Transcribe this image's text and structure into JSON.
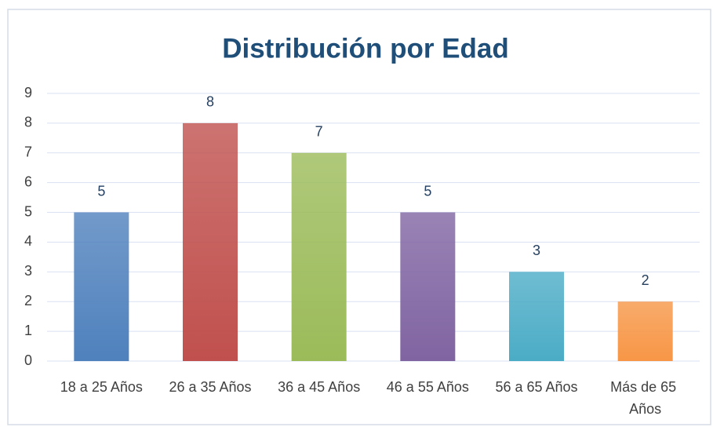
{
  "chart_data": {
    "type": "bar",
    "title": "Distribución por Edad",
    "categories": [
      "18 a 25 Años",
      "26 a 35 Años",
      "36 a 45 Años",
      "46 a 55 Años",
      "56 a 65 Años",
      "Más de 65 Años"
    ],
    "values": [
      5,
      8,
      7,
      5,
      3,
      2
    ],
    "colors": [
      "#4f81bd",
      "#c0504d",
      "#9bbb59",
      "#8064a2",
      "#4bacc6",
      "#f79646"
    ],
    "ylim": [
      0,
      9
    ],
    "yticks": [
      0,
      1,
      2,
      3,
      4,
      5,
      6,
      7,
      8,
      9
    ],
    "grid": true
  }
}
